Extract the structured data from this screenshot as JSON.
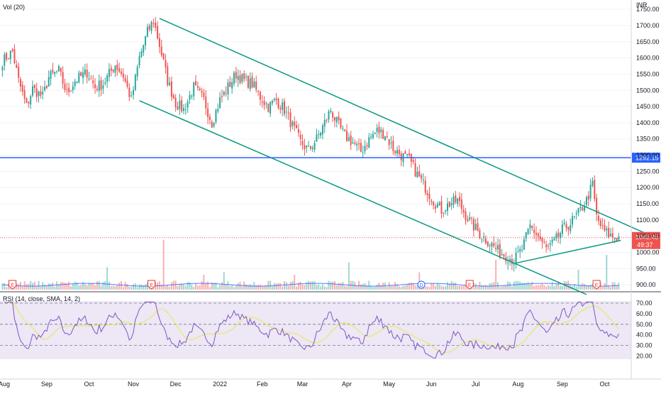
{
  "header": {
    "main_label": "Vol (20)",
    "currency": "INR"
  },
  "rsi_label": "RSI (14, close, SMA, 14, 2)",
  "colors": {
    "up": "#26a69a",
    "down": "#ef5350",
    "trend": "#089981",
    "hline": "#2962ff",
    "vol_ma": "#2962ff",
    "rsi_line": "#7e57c2",
    "rsi_ma": "#e8e84a",
    "rsi_bg": "#ede7f6",
    "event": "#e53935",
    "div": "#2962ff"
  },
  "x_axis": {
    "labels": [
      "Aug",
      "Sep",
      "Oct",
      "Nov",
      "Dec",
      "2022",
      "Feb",
      "Mar",
      "Apr",
      "May",
      "Jun",
      "Jul",
      "Aug",
      "Sep",
      "Oct"
    ]
  },
  "price_axis": {
    "labels": [
      "1750.00",
      "1700.00",
      "1650.00",
      "1600.00",
      "1550.00",
      "1500.00",
      "1450.00",
      "1400.00",
      "1350.00",
      "1300.00",
      "1250.00",
      "1200.00",
      "1150.00",
      "1100.00",
      "1050.00",
      "1000.00",
      "950.00",
      "900.00"
    ]
  },
  "rsi_axis": {
    "labels": [
      "70.00",
      "60.00",
      "50.00",
      "40.00",
      "30.00",
      "20.00"
    ]
  },
  "horizontal_level": {
    "value": 1292.15,
    "label": "1292.15"
  },
  "last_price": {
    "value": 1045.45,
    "label": "1045.45",
    "countdown": "49:37"
  },
  "events": [
    {
      "label": "E"
    },
    {
      "label": "E"
    },
    {
      "label": "D"
    },
    {
      "label": "E"
    },
    {
      "label": "E"
    }
  ],
  "chart_data": {
    "type": "candlestick",
    "title": "",
    "x_unit": "bar index (daily)",
    "ylim": [
      885,
      1770
    ],
    "rsi_ylim": [
      17,
      72
    ],
    "rsi_levels": [
      70,
      50,
      30
    ],
    "anchors": [
      [
        0,
        1590
      ],
      [
        5,
        1620
      ],
      [
        8,
        1530
      ],
      [
        12,
        1450
      ],
      [
        15,
        1505
      ],
      [
        20,
        1480
      ],
      [
        23,
        1540
      ],
      [
        28,
        1560
      ],
      [
        32,
        1490
      ],
      [
        36,
        1530
      ],
      [
        42,
        1555
      ],
      [
        46,
        1510
      ],
      [
        50,
        1520
      ],
      [
        56,
        1580
      ],
      [
        60,
        1545
      ],
      [
        64,
        1470
      ],
      [
        68,
        1600
      ],
      [
        72,
        1680
      ],
      [
        75,
        1715
      ],
      [
        78,
        1640
      ],
      [
        82,
        1530
      ],
      [
        86,
        1460
      ],
      [
        90,
        1440
      ],
      [
        95,
        1510
      ],
      [
        100,
        1470
      ],
      [
        104,
        1400
      ],
      [
        108,
        1470
      ],
      [
        112,
        1510
      ],
      [
        116,
        1550
      ],
      [
        120,
        1530
      ],
      [
        124,
        1520
      ],
      [
        128,
        1480
      ],
      [
        132,
        1450
      ],
      [
        136,
        1470
      ],
      [
        140,
        1440
      ],
      [
        144,
        1390
      ],
      [
        148,
        1340
      ],
      [
        152,
        1315
      ],
      [
        156,
        1350
      ],
      [
        160,
        1400
      ],
      [
        163,
        1440
      ],
      [
        166,
        1400
      ],
      [
        170,
        1360
      ],
      [
        174,
        1340
      ],
      [
        178,
        1310
      ],
      [
        182,
        1350
      ],
      [
        186,
        1375
      ],
      [
        190,
        1365
      ],
      [
        194,
        1320
      ],
      [
        198,
        1300
      ],
      [
        202,
        1285
      ],
      [
        206,
        1240
      ],
      [
        210,
        1200
      ],
      [
        214,
        1160
      ],
      [
        218,
        1130
      ],
      [
        222,
        1150
      ],
      [
        226,
        1160
      ],
      [
        230,
        1115
      ],
      [
        234,
        1080
      ],
      [
        238,
        1050
      ],
      [
        242,
        1030
      ],
      [
        246,
        1005
      ],
      [
        250,
        990
      ],
      [
        254,
        975
      ],
      [
        258,
        1010
      ],
      [
        262,
        1080
      ],
      [
        266,
        1050
      ],
      [
        270,
        1010
      ],
      [
        274,
        1030
      ],
      [
        278,
        1070
      ],
      [
        282,
        1090
      ],
      [
        286,
        1120
      ],
      [
        290,
        1160
      ],
      [
        293,
        1210
      ],
      [
        295,
        1110
      ],
      [
        298,
        1070
      ],
      [
        302,
        1050
      ],
      [
        306,
        1045
      ]
    ],
    "volume_spikes": [
      [
        80,
        1.0
      ],
      [
        207,
        0.35
      ],
      [
        245,
        0.6
      ],
      [
        172,
        0.55
      ],
      [
        52,
        0.45
      ],
      [
        110,
        0.35
      ],
      [
        100,
        0.3
      ],
      [
        300,
        0.7
      ],
      [
        286,
        0.4
      ],
      [
        145,
        0.3
      ]
    ],
    "trendlines": [
      {
        "from": [
          78,
          1722
        ],
        "to": [
          320,
          1057
        ]
      },
      {
        "from": [
          68,
          1468
        ],
        "to": [
          290,
          870
        ]
      },
      {
        "from": [
          255,
          967
        ],
        "to": [
          307,
          1037
        ]
      }
    ],
    "event_bars": [
      5,
      74,
      208,
      232,
      295
    ],
    "vol_ma_level": 0.22
  }
}
